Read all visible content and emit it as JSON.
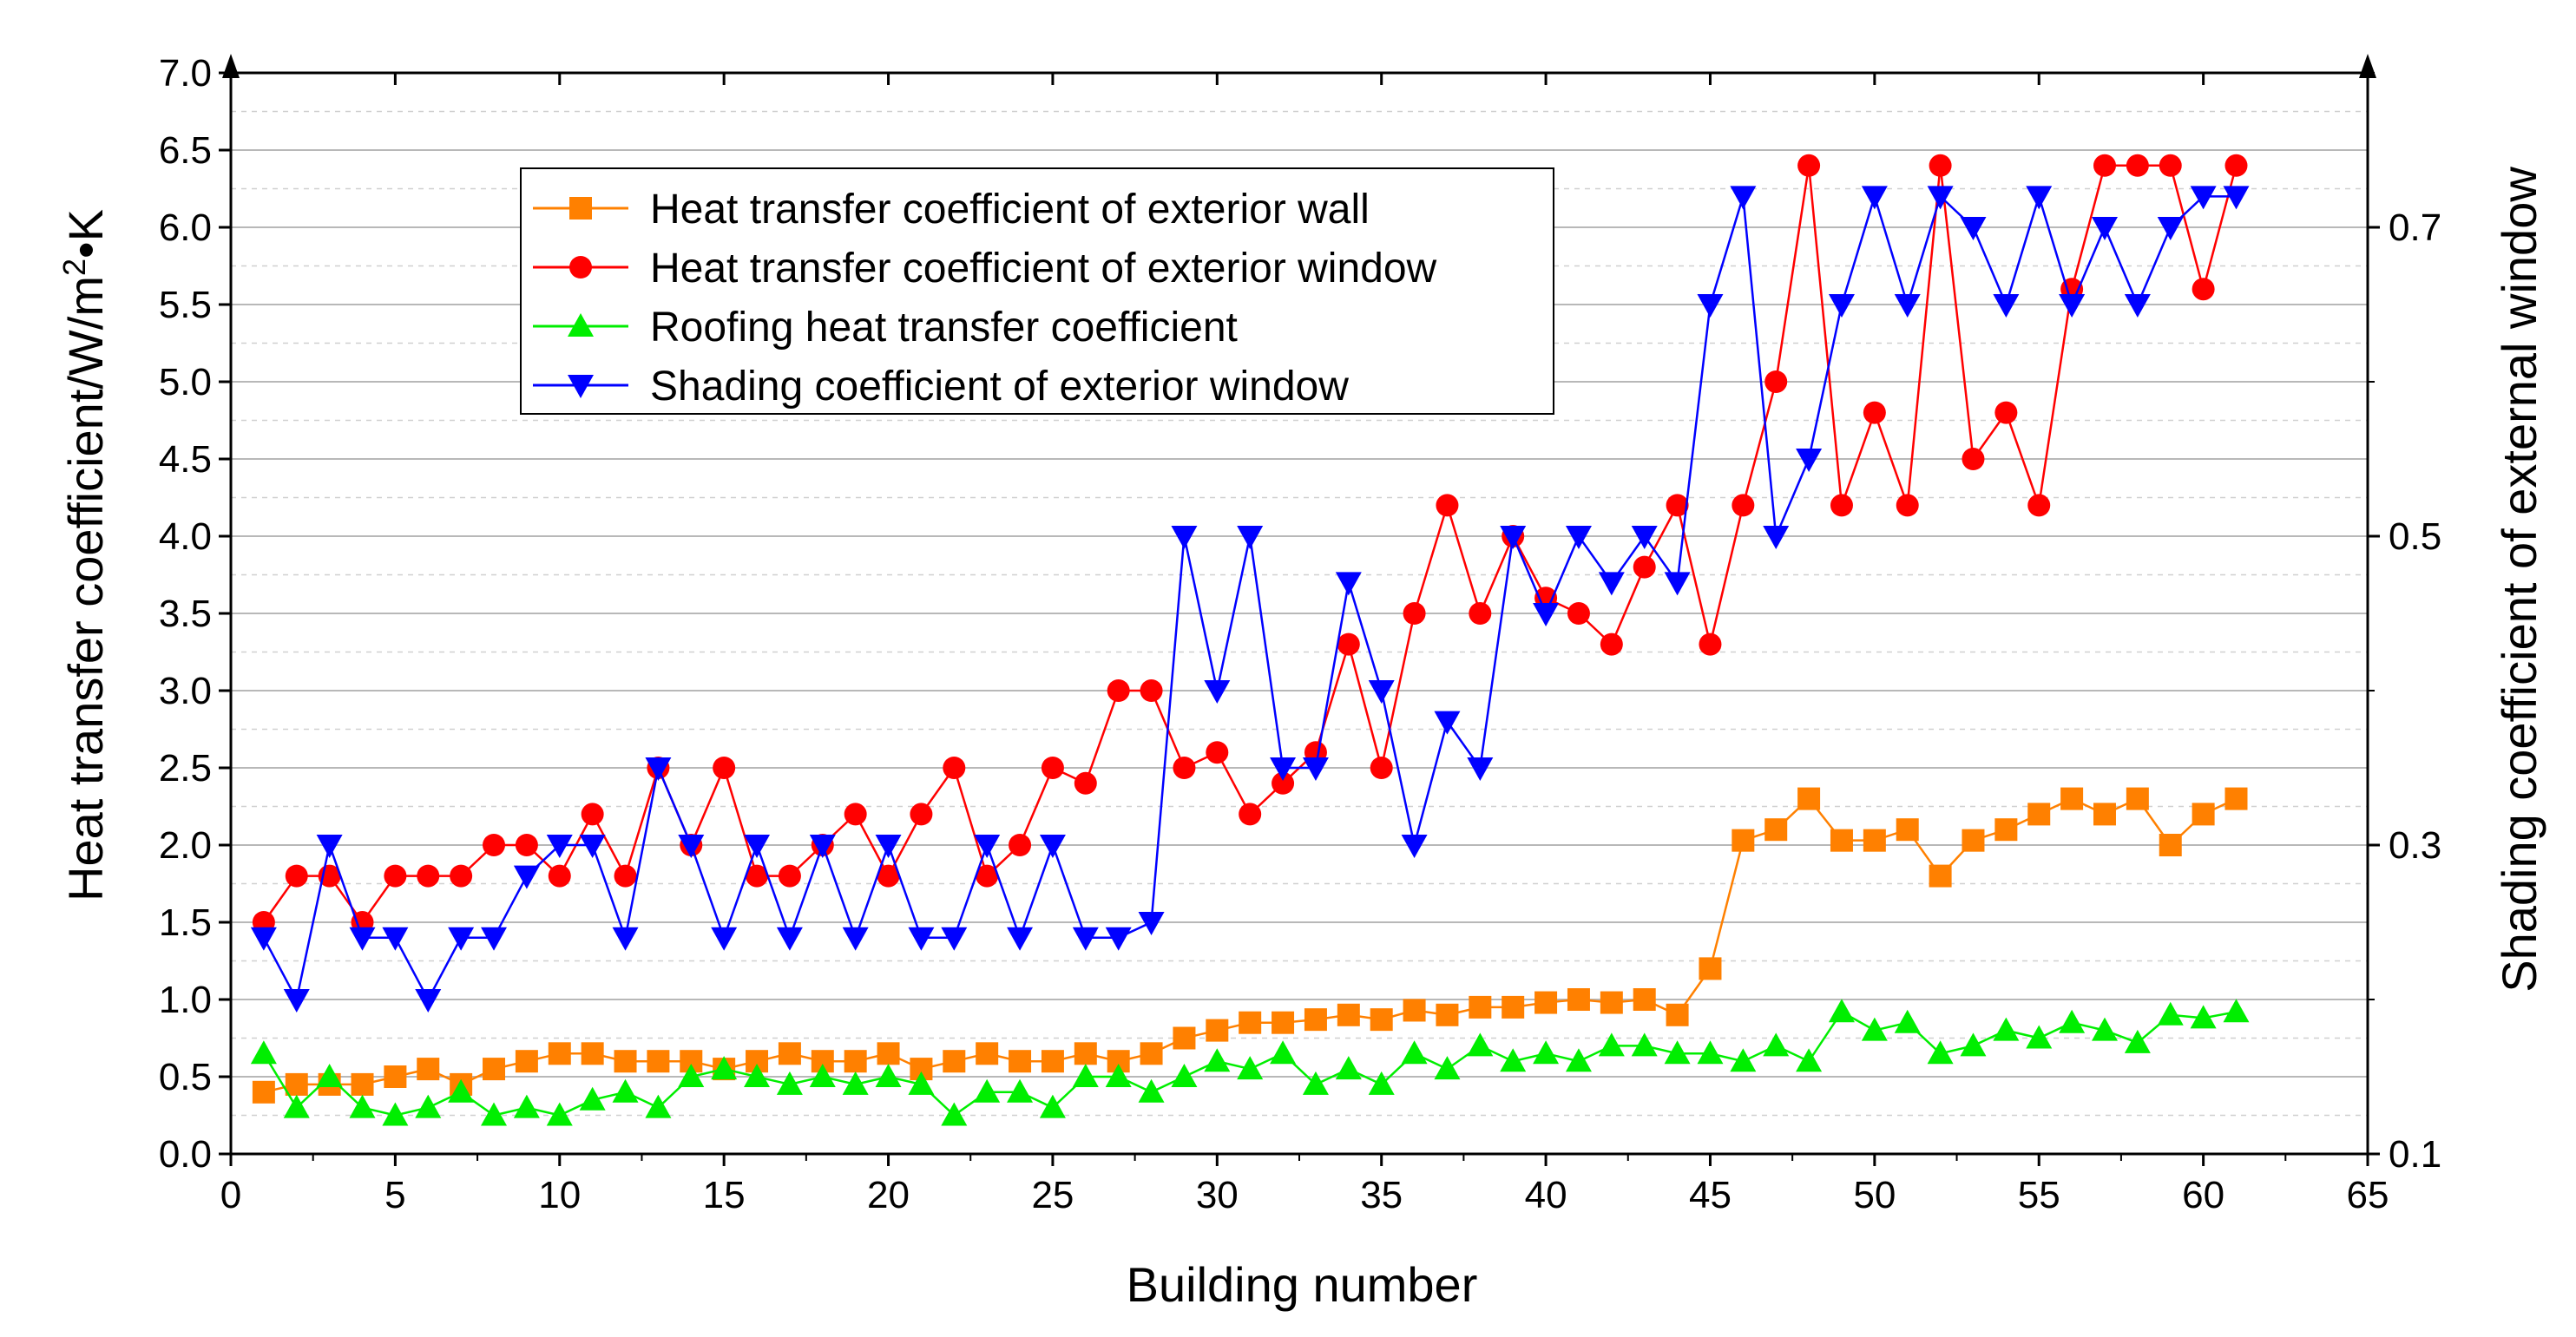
{
  "chart_data": {
    "type": "line",
    "title": "",
    "xlabel": "Building number",
    "ylabel": "Heat transfer coefficient/W/m²•K",
    "ylabel_parts": {
      "base": "Heat transfer coefficient/W/m",
      "sup": "2",
      "tail": "•K"
    },
    "y2label": "Shading coefficient of external window",
    "xlim": [
      0,
      65
    ],
    "ylim": [
      0.0,
      7.0
    ],
    "y2lim": [
      0.1,
      0.8
    ],
    "x_ticks": [
      "0",
      "5",
      "10",
      "15",
      "20",
      "25",
      "30",
      "35",
      "40",
      "45",
      "50",
      "55",
      "60",
      "65"
    ],
    "y_ticks": [
      "0.0",
      "0.5",
      "1.0",
      "1.5",
      "2.0",
      "2.5",
      "3.0",
      "3.5",
      "4.0",
      "4.5",
      "5.0",
      "5.5",
      "6.0",
      "6.5",
      "7.0"
    ],
    "y2_ticks": [
      "0.1",
      "0.3",
      "0.5",
      "0.7"
    ],
    "grid": true,
    "legend_position": "upper-left-center",
    "series": [
      {
        "name": "Heat transfer coefficient of exterior wall",
        "axis": "left",
        "marker": "square",
        "color": "#ff8000",
        "x": [
          1,
          2,
          3,
          4,
          5,
          6,
          7,
          8,
          9,
          10,
          11,
          12,
          13,
          14,
          15,
          16,
          17,
          18,
          19,
          20,
          21,
          22,
          23,
          24,
          25,
          26,
          27,
          28,
          29,
          30,
          31,
          32,
          33,
          34,
          35,
          36,
          37,
          38,
          39,
          40,
          41,
          42,
          43,
          44,
          45,
          46,
          47,
          48,
          49,
          50,
          51,
          52,
          53,
          54,
          55,
          56,
          57,
          58,
          59,
          60,
          61
        ],
        "values": [
          0.4,
          0.45,
          0.45,
          0.45,
          0.5,
          0.55,
          0.45,
          0.55,
          0.6,
          0.65,
          0.65,
          0.6,
          0.6,
          0.6,
          0.55,
          0.6,
          0.65,
          0.6,
          0.6,
          0.65,
          0.55,
          0.6,
          0.65,
          0.6,
          0.6,
          0.65,
          0.6,
          0.65,
          0.75,
          0.8,
          0.85,
          0.85,
          0.87,
          0.9,
          0.87,
          0.93,
          0.9,
          0.95,
          0.95,
          0.98,
          1.0,
          0.98,
          1.0,
          0.9,
          1.2,
          2.03,
          2.1,
          2.3,
          2.03,
          2.03,
          2.1,
          1.8,
          2.03,
          2.1,
          2.2,
          2.3,
          2.2,
          2.3,
          2.0,
          2.2,
          2.3
        ]
      },
      {
        "name": "Heat transfer coefficient of exterior window",
        "axis": "left",
        "marker": "circle",
        "color": "#ff0000",
        "x": [
          1,
          2,
          3,
          4,
          5,
          6,
          7,
          8,
          9,
          10,
          11,
          12,
          13,
          14,
          15,
          16,
          17,
          18,
          19,
          20,
          21,
          22,
          23,
          24,
          25,
          26,
          27,
          28,
          29,
          30,
          31,
          32,
          33,
          34,
          35,
          36,
          37,
          38,
          39,
          40,
          41,
          42,
          43,
          44,
          45,
          46,
          47,
          48,
          49,
          50,
          51,
          52,
          53,
          54,
          55,
          56,
          57,
          58,
          59,
          60,
          61
        ],
        "values": [
          1.5,
          1.8,
          1.8,
          1.5,
          1.8,
          1.8,
          1.8,
          2.0,
          2.0,
          1.8,
          2.2,
          1.8,
          2.5,
          2.0,
          2.5,
          1.8,
          1.8,
          2.0,
          2.2,
          1.8,
          2.2,
          2.5,
          1.8,
          2.0,
          2.5,
          2.4,
          3.0,
          3.0,
          2.5,
          2.6,
          2.2,
          2.4,
          2.6,
          3.3,
          2.5,
          3.5,
          4.2,
          3.5,
          4.0,
          3.6,
          3.5,
          3.3,
          3.8,
          4.2,
          3.3,
          4.2,
          5.0,
          6.4,
          4.2,
          4.8,
          4.2,
          6.4,
          4.5,
          4.8,
          4.2,
          5.6,
          6.4,
          6.4,
          6.4,
          5.6,
          6.4
        ]
      },
      {
        "name": "Roofing heat transfer coefficient",
        "axis": "left",
        "marker": "triangle-up",
        "color": "#00ee00",
        "x": [
          1,
          2,
          3,
          4,
          5,
          6,
          7,
          8,
          9,
          10,
          11,
          12,
          13,
          14,
          15,
          16,
          17,
          18,
          19,
          20,
          21,
          22,
          23,
          24,
          25,
          26,
          27,
          28,
          29,
          30,
          31,
          32,
          33,
          34,
          35,
          36,
          37,
          38,
          39,
          40,
          41,
          42,
          43,
          44,
          45,
          46,
          47,
          48,
          49,
          50,
          51,
          52,
          53,
          54,
          55,
          56,
          57,
          58,
          59,
          60,
          61
        ],
        "values": [
          0.65,
          0.3,
          0.5,
          0.3,
          0.25,
          0.3,
          0.4,
          0.25,
          0.3,
          0.25,
          0.35,
          0.4,
          0.3,
          0.5,
          0.55,
          0.5,
          0.45,
          0.5,
          0.45,
          0.5,
          0.45,
          0.25,
          0.4,
          0.4,
          0.3,
          0.5,
          0.5,
          0.4,
          0.5,
          0.6,
          0.55,
          0.65,
          0.45,
          0.55,
          0.45,
          0.65,
          0.55,
          0.7,
          0.6,
          0.65,
          0.6,
          0.7,
          0.7,
          0.65,
          0.65,
          0.6,
          0.7,
          0.6,
          0.92,
          0.8,
          0.85,
          0.65,
          0.7,
          0.8,
          0.75,
          0.85,
          0.8,
          0.72,
          0.9,
          0.88,
          0.92
        ]
      },
      {
        "name": "Shading coefficient of exterior window",
        "axis": "right",
        "marker": "triangle-down",
        "color": "#0000ff",
        "x": [
          1,
          2,
          3,
          4,
          5,
          6,
          7,
          8,
          9,
          10,
          11,
          12,
          13,
          14,
          15,
          16,
          17,
          18,
          19,
          20,
          21,
          22,
          23,
          24,
          25,
          26,
          27,
          28,
          29,
          30,
          31,
          32,
          33,
          34,
          35,
          36,
          37,
          38,
          39,
          40,
          41,
          42,
          43,
          44,
          45,
          46,
          47,
          48,
          49,
          50,
          51,
          52,
          53,
          54,
          55,
          56,
          57,
          58,
          59,
          60,
          61
        ],
        "values": [
          0.24,
          0.2,
          0.3,
          0.24,
          0.24,
          0.2,
          0.24,
          0.24,
          0.28,
          0.3,
          0.3,
          0.24,
          0.35,
          0.3,
          0.24,
          0.3,
          0.24,
          0.3,
          0.24,
          0.3,
          0.24,
          0.24,
          0.3,
          0.24,
          0.3,
          0.24,
          0.24,
          0.25,
          0.5,
          0.4,
          0.5,
          0.35,
          0.35,
          0.47,
          0.4,
          0.3,
          0.38,
          0.35,
          0.5,
          0.45,
          0.5,
          0.47,
          0.5,
          0.47,
          0.65,
          0.72,
          0.5,
          0.55,
          0.65,
          0.72,
          0.65,
          0.72,
          0.7,
          0.65,
          0.72,
          0.65,
          0.7,
          0.65,
          0.7,
          0.72,
          0.72
        ]
      }
    ]
  }
}
